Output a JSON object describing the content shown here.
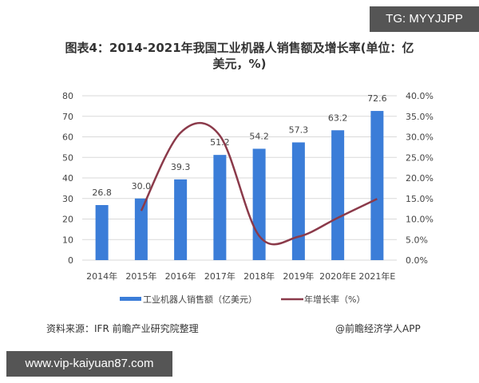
{
  "overlays": {
    "top_badge": "TG: MYYJJPP",
    "bottom_badge": "www.vip-kaiyuan87.com"
  },
  "title_line1": "图表4：2014-2021年我国工业机器人销售额及增长率(单位：亿",
  "title_line2": "美元，%)",
  "footer": {
    "source": "资料来源：IFR 前瞻产业研究院整理",
    "credit": "@前瞻经济学人APP"
  },
  "colors": {
    "bar": "#3b7dd8",
    "line": "#8b3a4a",
    "grid": "#d9d9d9"
  },
  "chart_data": {
    "type": "bar",
    "title": "图表4：2014-2021年我国工业机器人销售额及增长率(单位：亿美元，%)",
    "categories": [
      "2014年",
      "2015年",
      "2016年",
      "2017年",
      "2018年",
      "2019年",
      "2020年E",
      "2021年E"
    ],
    "series": [
      {
        "name": "工业机器人销售额（亿美元）",
        "type": "bar",
        "axis": "left",
        "values": [
          26.8,
          30.0,
          39.3,
          51.2,
          54.2,
          57.3,
          63.2,
          72.6
        ]
      },
      {
        "name": "年增长率（%）",
        "type": "line",
        "axis": "right",
        "smooth": true,
        "values": [
          null,
          12.0,
          31.0,
          30.3,
          5.9,
          5.7,
          10.3,
          14.9
        ]
      }
    ],
    "left_axis": {
      "ylim": [
        0,
        80
      ],
      "ticks": [
        "0",
        "10",
        "20",
        "30",
        "40",
        "50",
        "60",
        "70",
        "80"
      ]
    },
    "right_axis": {
      "ylim": [
        0,
        40
      ],
      "ticks": [
        "0.0%",
        "5.0%",
        "10.0%",
        "15.0%",
        "20.0%",
        "25.0%",
        "30.0%",
        "35.0%",
        "40.0%"
      ]
    },
    "data_labels": [
      "26.8",
      "30.0",
      "39.3",
      "51.2",
      "54.2",
      "57.3",
      "63.2",
      "72.6"
    ],
    "legend": [
      "工业机器人销售额（亿美元）",
      "年增长率（%）"
    ],
    "legend_position": "bottom",
    "grid": true,
    "xlabel": "",
    "ylabel": ""
  }
}
